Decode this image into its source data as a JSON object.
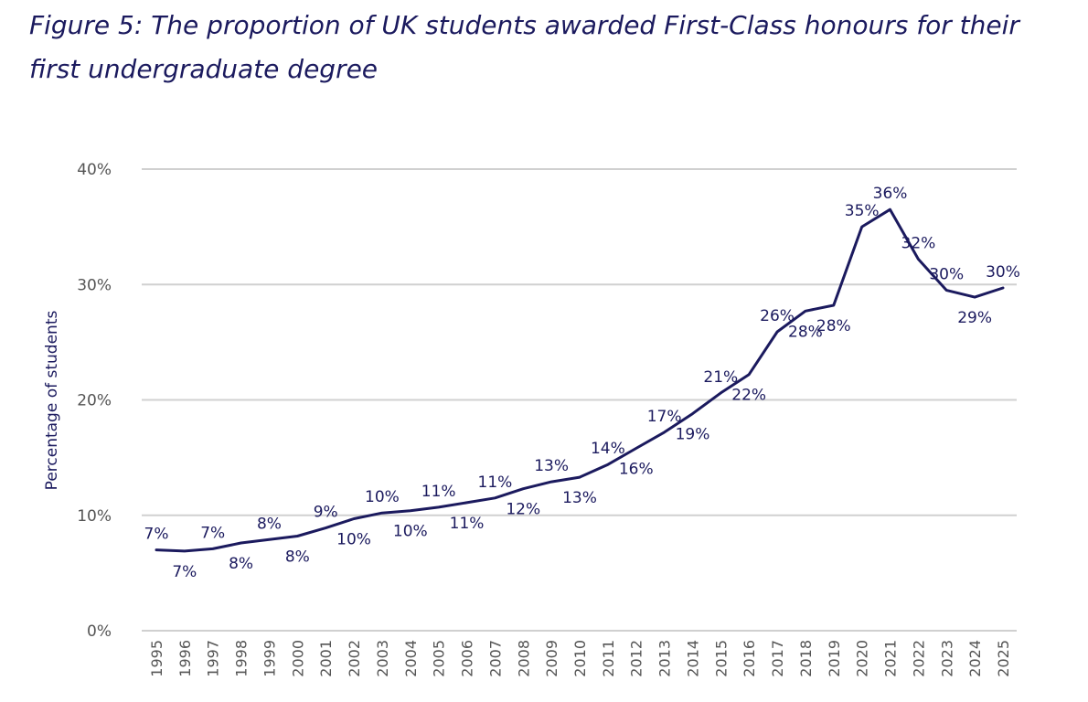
{
  "chart_data": {
    "type": "line",
    "title": "Figure 5: The proportion of UK students awarded First-Class honours for their first undergraduate degree",
    "xlabel": "",
    "ylabel": "Percentage of students",
    "ylim": [
      0,
      40
    ],
    "yticks": [
      "0%",
      "10%",
      "20%",
      "30%",
      "40%"
    ],
    "grid": true,
    "line_color": "#1b1a5e",
    "x": [
      "1995",
      "1996",
      "1997",
      "1998",
      "1999",
      "2000",
      "2001",
      "2002",
      "2003",
      "2004",
      "2005",
      "2006",
      "2007",
      "2008",
      "2009",
      "2010",
      "2011",
      "2012",
      "2013",
      "2014",
      "2015",
      "2016",
      "2017",
      "2018",
      "2019",
      "2020",
      "2021",
      "2022",
      "2023",
      "2024",
      "2025"
    ],
    "series": [
      {
        "values": [
          7.0,
          6.9,
          7.1,
          7.6,
          7.9,
          8.2,
          8.9,
          9.7,
          10.2,
          10.4,
          10.7,
          11.1,
          11.5,
          12.3,
          12.9,
          13.3,
          14.4,
          15.8,
          17.2,
          18.8,
          20.6,
          22.2,
          25.9,
          27.7,
          28.2,
          35.0,
          36.5,
          32.2,
          29.5,
          28.9,
          29.7
        ],
        "labels": [
          "7%",
          "7%",
          "7%",
          "8%",
          "8%",
          "8%",
          "9%",
          "10%",
          "10%",
          "10%",
          "11%",
          "11%",
          "11%",
          "12%",
          "13%",
          "13%",
          "14%",
          "16%",
          "17%",
          "19%",
          "21%",
          "22%",
          "26%",
          "28%",
          "28%",
          "35%",
          "36%",
          "32%",
          "30%",
          "29%",
          "30%"
        ]
      }
    ]
  }
}
